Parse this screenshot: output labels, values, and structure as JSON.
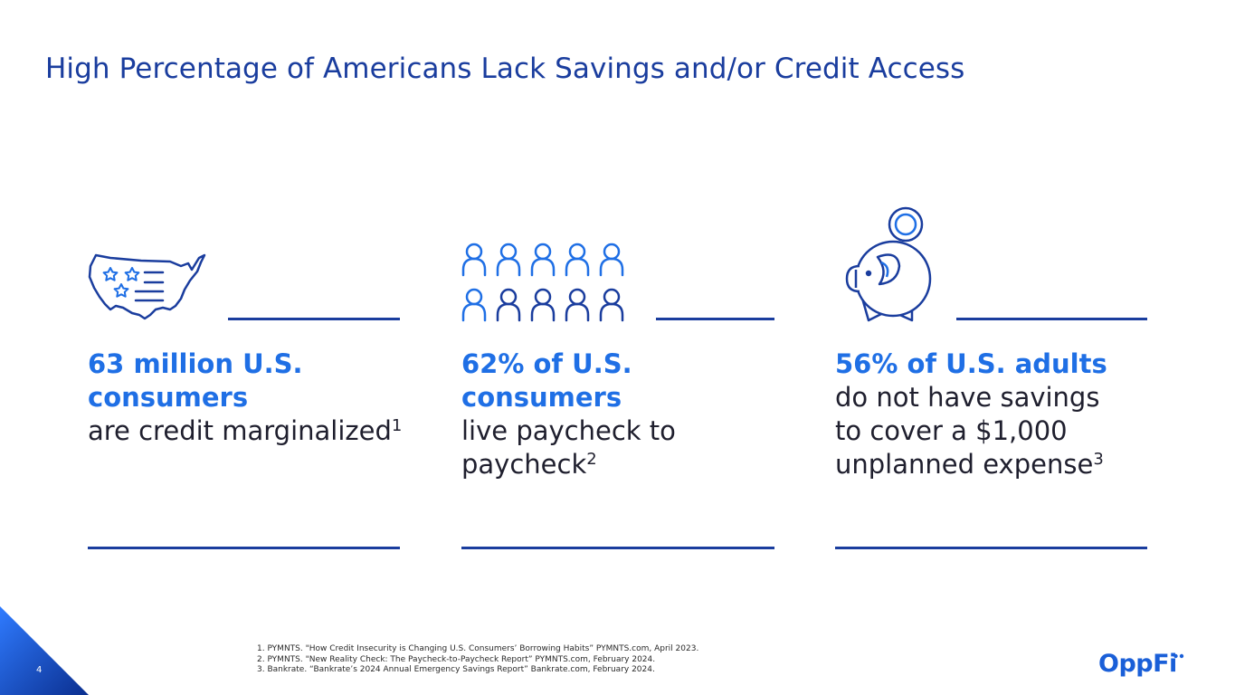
{
  "slide": {
    "title": "High Percentage of Americans Lack Savings and/or Credit Access",
    "page_number": "4"
  },
  "stats": [
    {
      "icon": "us-map-icon",
      "highlight": "63 million U.S. consumers",
      "text": "are credit marginalized",
      "footnote_ref": "1"
    },
    {
      "icon": "people-group-icon",
      "highlight": "62% of U.S. consumers",
      "text": "live paycheck to paycheck",
      "footnote_ref": "2"
    },
    {
      "icon": "piggy-bank-icon",
      "highlight": "56% of U.S. adults",
      "text": "do not have savings to cover a $1,000 unplanned expense",
      "footnote_ref": "3"
    }
  ],
  "footnotes": [
    "1. PYMNTS. \"How Credit Insecurity is Changing U.S. Consumers’ Borrowing Habits” PYMNTS.com, April 2023.",
    "2. PYMNTS. \"New Reality Check: The Paycheck-to-Paycheck Report” PYMNTS.com, February 2024.",
    "3. Bankrate. “Bankrate’s 2024 Annual Emergency Savings Report” Bankrate.com, February 2024."
  ],
  "brand": {
    "logo_text": "OppFi",
    "primary_color": "#1a3d9e",
    "accent_color": "#1f6fe5"
  }
}
